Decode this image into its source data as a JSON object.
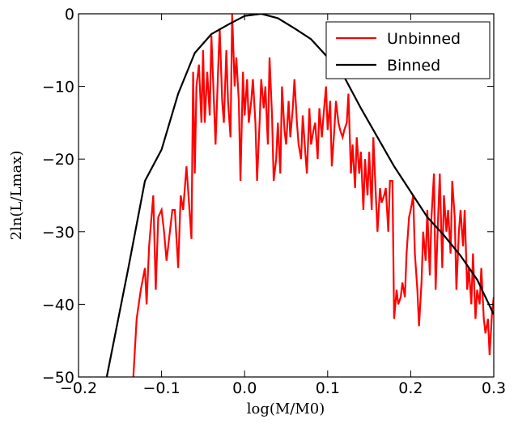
{
  "chart_data": {
    "type": "line",
    "xlabel": "log(M/M0)",
    "ylabel": "2ln(L/Lmax)",
    "xlim": [
      -0.2,
      0.3
    ],
    "ylim": [
      -50,
      0
    ],
    "xticks": [
      {
        "value": -0.2,
        "label": "−0.2"
      },
      {
        "value": -0.1,
        "label": "−0.1"
      },
      {
        "value": 0,
        "label": "0.0"
      },
      {
        "value": 0.1,
        "label": "0.1"
      },
      {
        "value": 0.2,
        "label": "0.2"
      },
      {
        "value": 0.3,
        "label": "0.3"
      }
    ],
    "yticks": [
      {
        "value": -50,
        "label": "−50"
      },
      {
        "value": -40,
        "label": "−40"
      },
      {
        "value": -30,
        "label": "−30"
      },
      {
        "value": -20,
        "label": "−20"
      },
      {
        "value": -10,
        "label": "−10"
      },
      0
    ],
    "grid": false,
    "legend": "upper right",
    "series": [
      {
        "name": "Unbinned",
        "color": "#ff0000",
        "x": [
          -0.134,
          -0.13,
          -0.125,
          -0.12,
          -0.118,
          -0.115,
          -0.11,
          -0.107,
          -0.104,
          -0.1,
          -0.097,
          -0.094,
          -0.09,
          -0.087,
          -0.084,
          -0.08,
          -0.077,
          -0.074,
          -0.07,
          -0.067,
          -0.064,
          -0.062,
          -0.06,
          -0.058,
          -0.055,
          -0.052,
          -0.05,
          -0.048,
          -0.045,
          -0.042,
          -0.04,
          -0.037,
          -0.035,
          -0.032,
          -0.03,
          -0.027,
          -0.025,
          -0.022,
          -0.02,
          -0.017,
          -0.015,
          -0.012,
          -0.01,
          -0.007,
          -0.005,
          -0.002,
          0,
          0.003,
          0.005,
          0.008,
          0.01,
          0.013,
          0.015,
          0.018,
          0.02,
          0.023,
          0.025,
          0.028,
          0.03,
          0.033,
          0.035,
          0.038,
          0.04,
          0.043,
          0.045,
          0.048,
          0.05,
          0.053,
          0.055,
          0.058,
          0.06,
          0.063,
          0.065,
          0.068,
          0.07,
          0.073,
          0.075,
          0.078,
          0.08,
          0.083,
          0.085,
          0.088,
          0.09,
          0.093,
          0.095,
          0.098,
          0.1,
          0.103,
          0.105,
          0.108,
          0.11,
          0.113,
          0.115,
          0.118,
          0.12,
          0.123,
          0.125,
          0.128,
          0.13,
          0.133,
          0.135,
          0.138,
          0.14,
          0.143,
          0.145,
          0.148,
          0.15,
          0.153,
          0.155,
          0.158,
          0.16,
          0.163,
          0.165,
          0.168,
          0.17,
          0.173,
          0.175,
          0.178,
          0.18,
          0.183,
          0.185,
          0.188,
          0.19,
          0.193,
          0.195,
          0.198,
          0.2,
          0.203,
          0.205,
          0.208,
          0.21,
          0.213,
          0.215,
          0.218,
          0.22,
          0.223,
          0.225,
          0.228,
          0.23,
          0.233,
          0.235,
          0.238,
          0.24,
          0.243,
          0.245,
          0.248,
          0.25,
          0.253,
          0.255,
          0.258,
          0.26,
          0.263,
          0.265,
          0.268,
          0.27,
          0.273,
          0.275,
          0.278,
          0.28,
          0.283,
          0.285,
          0.288,
          0.29,
          0.293,
          0.295,
          0.298,
          0.3
        ],
        "values": [
          -50,
          -42,
          -38,
          -35,
          -40,
          -32,
          -25,
          -38,
          -28,
          -27,
          -30,
          -34,
          -30,
          -27,
          -27,
          -35,
          -25,
          -27,
          -21,
          -26,
          -31,
          -8,
          -22,
          -10,
          -7,
          -15,
          -5,
          -15,
          -8,
          -14,
          -3,
          -12,
          -18,
          -8,
          -2,
          -12,
          -15,
          -5,
          -12,
          -17,
          0,
          -10,
          -6,
          -12,
          -23,
          -8,
          -14,
          -9,
          -15,
          -12,
          -9,
          -15,
          -23,
          -15,
          -9,
          -13,
          -10,
          -18,
          -6,
          -14,
          -23,
          -20,
          -15,
          -22,
          -10,
          -16,
          -18,
          -12,
          -17,
          -13,
          -9,
          -15,
          -18,
          -20,
          -14,
          -19,
          -22,
          -13,
          -18,
          -16,
          -15,
          -20,
          -13,
          -17,
          -14,
          -10,
          -16,
          -12,
          -21,
          -16,
          -12,
          -15,
          -16,
          -17,
          -16,
          -15,
          -11,
          -22,
          -18,
          -24,
          -17,
          -22,
          -19,
          -27,
          -20,
          -25,
          -19,
          -27,
          -17,
          -25,
          -30,
          -24,
          -26,
          -25,
          -24,
          -30,
          -23,
          -23,
          -42,
          -38,
          -40,
          -39,
          -37,
          -39,
          -33,
          -28,
          -27,
          -25,
          -33,
          -38,
          -43,
          -37,
          -30,
          -34,
          -27,
          -36,
          -28,
          -22,
          -38,
          -28,
          -22,
          -35,
          -25,
          -30,
          -27,
          -33,
          -23,
          -28,
          -38,
          -30,
          -27,
          -32,
          -27,
          -38,
          -35,
          -40,
          -33,
          -42,
          -38,
          -40,
          -35,
          -42,
          -44,
          -42,
          -47,
          -41,
          -39
        ]
      },
      {
        "name": "Binned",
        "color": "#000000",
        "x": [
          -0.166,
          -0.14,
          -0.12,
          -0.1,
          -0.08,
          -0.06,
          -0.04,
          -0.02,
          0,
          0.02,
          0.04,
          0.06,
          0.08,
          0.1,
          0.12,
          0.14,
          0.16,
          0.18,
          0.2,
          0.22,
          0.24,
          0.26,
          0.28,
          0.3
        ],
        "values": [
          -50,
          -35,
          -23,
          -18.7,
          -11,
          -5.4,
          -2.8,
          -1.5,
          -0.3,
          0,
          -0.6,
          -2,
          -3.5,
          -6,
          -8.7,
          -13,
          -17,
          -21,
          -24.5,
          -28,
          -30.5,
          -33.3,
          -36.6,
          -41.4
        ]
      }
    ]
  }
}
